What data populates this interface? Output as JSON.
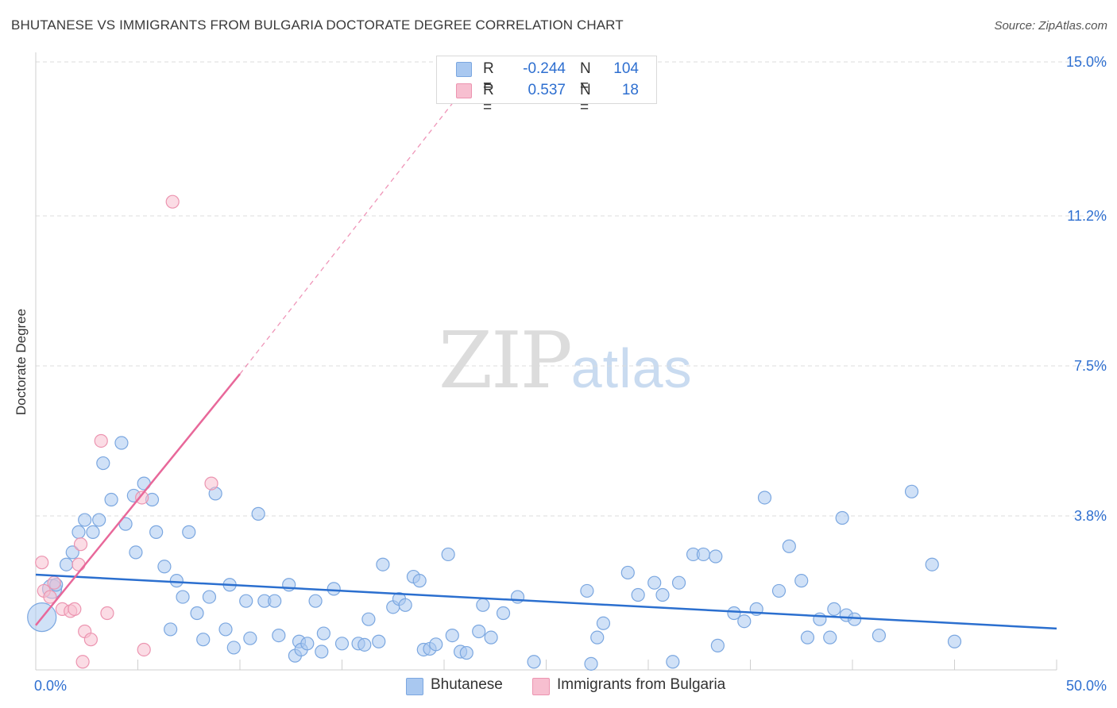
{
  "title": "BHUTANESE VS IMMIGRANTS FROM BULGARIA DOCTORATE DEGREE CORRELATION CHART",
  "source": "Source: ZipAtlas.com",
  "watermark": {
    "zip": "ZIP",
    "atlas": "atlas"
  },
  "legend": {
    "rows": [
      {
        "r_label": "R =",
        "r_value": "-0.244",
        "n_label": "N =",
        "n_value": "104",
        "color": "#a9c8f0",
        "border": "#7ba7e0"
      },
      {
        "r_label": "R =",
        "r_value": "0.537",
        "n_label": "N =",
        "n_value": "18",
        "color": "#f7bfd0",
        "border": "#ec94b0"
      }
    ]
  },
  "bottom_legend": [
    {
      "label": "Bhutanese",
      "color": "#a9c8f0",
      "border": "#7ba7e0"
    },
    {
      "label": "Immigrants from Bulgaria",
      "color": "#f7bfd0",
      "border": "#ec94b0"
    }
  ],
  "chart_data": {
    "type": "scatter",
    "title": "BHUTANESE VS IMMIGRANTS FROM BULGARIA DOCTORATE DEGREE CORRELATION CHART",
    "xlabel": "",
    "ylabel": "Doctorate Degree",
    "xlim": [
      0,
      50
    ],
    "ylim": [
      0,
      15
    ],
    "x_tick_labels": [
      {
        "value": 0,
        "label": "0.0%"
      },
      {
        "value": 50,
        "label": "50.0%"
      }
    ],
    "y_tick_labels": [
      {
        "value": 3.8,
        "label": "3.8%"
      },
      {
        "value": 7.5,
        "label": "7.5%"
      },
      {
        "value": 11.2,
        "label": "11.2%"
      },
      {
        "value": 15.0,
        "label": "15.0%"
      }
    ],
    "x_minor_ticks": [
      5,
      10,
      15,
      20,
      25,
      30,
      35,
      40,
      45,
      50
    ],
    "grid": "horizontal dashed",
    "series": [
      {
        "name": "Bhutanese",
        "color": "#a9c8f0",
        "stroke": "#7ba7e0",
        "trend": {
          "x0": 0,
          "y0": 2.35,
          "x1": 50,
          "y1": 1.02,
          "color": "#2b6fcf"
        },
        "points": [
          [
            0.3,
            1.3
          ],
          [
            0.8,
            2.0
          ],
          [
            1.0,
            2.1
          ],
          [
            1.5,
            2.6
          ],
          [
            1.8,
            2.9
          ],
          [
            2.1,
            3.4
          ],
          [
            2.4,
            3.7
          ],
          [
            2.8,
            3.4
          ],
          [
            3.1,
            3.7
          ],
          [
            3.3,
            5.1
          ],
          [
            3.7,
            4.2
          ],
          [
            4.2,
            5.6
          ],
          [
            4.4,
            3.6
          ],
          [
            4.9,
            2.9
          ],
          [
            4.8,
            4.3
          ],
          [
            5.3,
            4.6
          ],
          [
            5.7,
            4.2
          ],
          [
            5.9,
            3.4
          ],
          [
            6.3,
            2.55
          ],
          [
            6.6,
            1.0
          ],
          [
            6.9,
            2.2
          ],
          [
            7.2,
            1.8
          ],
          [
            7.5,
            3.4
          ],
          [
            7.9,
            1.4
          ],
          [
            8.2,
            0.75
          ],
          [
            8.5,
            1.8
          ],
          [
            8.8,
            4.35
          ],
          [
            9.3,
            1.0
          ],
          [
            9.5,
            2.1
          ],
          [
            9.7,
            0.55
          ],
          [
            10.3,
            1.7
          ],
          [
            10.5,
            0.78
          ],
          [
            10.9,
            3.85
          ],
          [
            11.2,
            1.7
          ],
          [
            11.7,
            1.7
          ],
          [
            11.9,
            0.85
          ],
          [
            12.4,
            2.1
          ],
          [
            12.7,
            0.35
          ],
          [
            12.9,
            0.7
          ],
          [
            13.0,
            0.5
          ],
          [
            13.3,
            0.65
          ],
          [
            14.0,
            0.45
          ],
          [
            13.7,
            1.7
          ],
          [
            14.1,
            0.9
          ],
          [
            14.6,
            2.0
          ],
          [
            15.0,
            0.65
          ],
          [
            15.8,
            0.65
          ],
          [
            16.1,
            0.62
          ],
          [
            16.3,
            1.25
          ],
          [
            16.8,
            0.7
          ],
          [
            17.0,
            2.6
          ],
          [
            17.5,
            1.55
          ],
          [
            17.8,
            1.75
          ],
          [
            18.1,
            1.6
          ],
          [
            18.5,
            2.3
          ],
          [
            18.8,
            2.2
          ],
          [
            19.0,
            0.5
          ],
          [
            19.3,
            0.52
          ],
          [
            19.6,
            0.63
          ],
          [
            20.2,
            2.85
          ],
          [
            20.4,
            0.85
          ],
          [
            20.8,
            0.45
          ],
          [
            21.1,
            0.42
          ],
          [
            21.9,
            1.6
          ],
          [
            21.7,
            0.95
          ],
          [
            22.3,
            0.8
          ],
          [
            22.9,
            1.4
          ],
          [
            23.6,
            1.8
          ],
          [
            24.4,
            0.2
          ],
          [
            27.0,
            1.95
          ],
          [
            27.2,
            0.15
          ],
          [
            27.5,
            0.8
          ],
          [
            27.8,
            1.15
          ],
          [
            29.0,
            2.4
          ],
          [
            29.5,
            1.85
          ],
          [
            30.3,
            2.15
          ],
          [
            30.7,
            1.85
          ],
          [
            31.2,
            0.2
          ],
          [
            31.5,
            2.15
          ],
          [
            32.2,
            2.85
          ],
          [
            32.7,
            2.85
          ],
          [
            33.3,
            2.8
          ],
          [
            33.4,
            0.6
          ],
          [
            34.2,
            1.4
          ],
          [
            34.7,
            1.2
          ],
          [
            35.3,
            1.5
          ],
          [
            35.7,
            4.25
          ],
          [
            36.4,
            1.95
          ],
          [
            36.9,
            3.05
          ],
          [
            37.5,
            2.2
          ],
          [
            37.8,
            0.8
          ],
          [
            38.4,
            1.25
          ],
          [
            38.9,
            0.8
          ],
          [
            39.1,
            1.5
          ],
          [
            39.5,
            3.75
          ],
          [
            39.7,
            1.35
          ],
          [
            40.1,
            1.25
          ],
          [
            41.3,
            0.85
          ],
          [
            42.9,
            4.4
          ],
          [
            43.9,
            2.6
          ],
          [
            45.0,
            0.7
          ]
        ]
      },
      {
        "name": "Immigrants from Bulgaria",
        "color": "#f7bfd0",
        "stroke": "#ec94b0",
        "trend": {
          "x0": 0,
          "y0": 1.1,
          "x1": 10,
          "y1": 7.3,
          "color": "#e8689a",
          "dash_to": {
            "x": 22,
            "y": 15
          }
        },
        "points": [
          [
            0.3,
            2.65
          ],
          [
            0.4,
            1.95
          ],
          [
            0.7,
            1.8
          ],
          [
            0.9,
            2.15
          ],
          [
            1.3,
            1.5
          ],
          [
            1.7,
            1.45
          ],
          [
            1.9,
            1.5
          ],
          [
            2.1,
            2.6
          ],
          [
            2.2,
            3.1
          ],
          [
            2.3,
            0.2
          ],
          [
            2.4,
            0.95
          ],
          [
            2.7,
            0.75
          ],
          [
            3.2,
            5.65
          ],
          [
            3.5,
            1.4
          ],
          [
            5.2,
            4.25
          ],
          [
            5.3,
            0.5
          ],
          [
            6.7,
            11.55
          ],
          [
            8.6,
            4.6
          ]
        ]
      }
    ]
  }
}
